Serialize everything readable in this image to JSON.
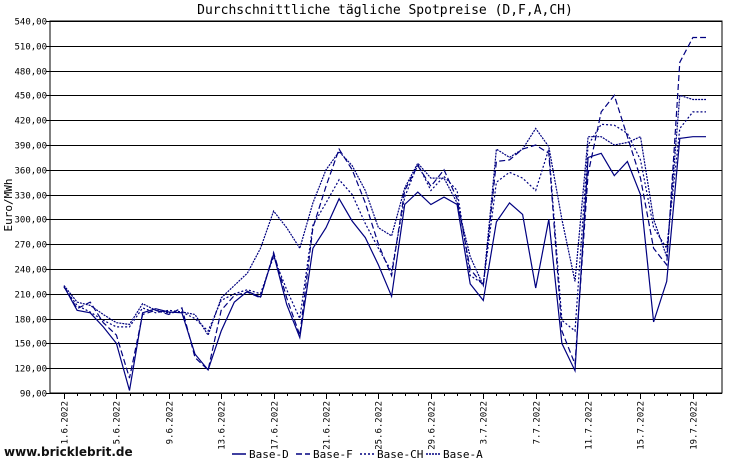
{
  "source": "www.bricklebrit.de",
  "chart_data": {
    "type": "line",
    "title": "Durchschnittliche tägliche Spotpreise (D,F,A,CH)",
    "xlabel": "",
    "ylabel": "Euro/MWh",
    "ylim": [
      90,
      540
    ],
    "yticks": [
      "90,00",
      "120,00",
      "150,00",
      "180,00",
      "210,00",
      "240,00",
      "270,00",
      "300,00",
      "330,00",
      "360,00",
      "390,00",
      "420,00",
      "450,00",
      "480,00",
      "510,00",
      "540,00"
    ],
    "x": [
      "1.6.2022",
      "2.6.2022",
      "3.6.2022",
      "4.6.2022",
      "5.6.2022",
      "6.6.2022",
      "7.6.2022",
      "8.6.2022",
      "9.6.2022",
      "10.6.2022",
      "11.6.2022",
      "12.6.2022",
      "13.6.2022",
      "14.6.2022",
      "15.6.2022",
      "16.6.2022",
      "17.6.2022",
      "18.6.2022",
      "19.6.2022",
      "20.6.2022",
      "21.6.2022",
      "22.6.2022",
      "23.6.2022",
      "24.6.2022",
      "25.6.2022",
      "26.6.2022",
      "27.6.2022",
      "28.6.2022",
      "29.6.2022",
      "30.6.2022",
      "1.7.2022",
      "2.7.2022",
      "3.7.2022",
      "4.7.2022",
      "5.7.2022",
      "6.7.2022",
      "7.7.2022",
      "8.7.2022",
      "9.7.2022",
      "10.7.2022",
      "11.7.2022",
      "12.7.2022",
      "13.7.2022",
      "14.7.2022",
      "15.7.2022",
      "16.7.2022",
      "17.7.2022",
      "18.7.2022",
      "19.7.2022",
      "20.7.2022"
    ],
    "xticks": [
      "1.6.2022",
      "5.6.2022",
      "9.6.2022",
      "13.6.2022",
      "17.6.2022",
      "21.6.2022",
      "25.6.2022",
      "29.6.2022",
      "3.7.2022",
      "7.7.2022",
      "11.7.2022",
      "15.7.2022",
      "19.7.2022"
    ],
    "grid": "horizontal",
    "legend": "bottom",
    "series": [
      {
        "name": "Base-D",
        "style": "solid",
        "color": "#000080",
        "values": [
          219,
          190,
          187,
          170,
          150,
          93,
          187,
          192,
          188,
          187,
          137,
          118,
          165,
          200,
          213,
          206,
          258,
          197,
          157,
          265,
          290,
          325,
          298,
          278,
          245,
          207,
          318,
          333,
          318,
          327,
          318,
          222,
          202,
          297,
          320,
          306,
          217,
          300,
          150,
          117,
          375,
          380,
          353,
          370,
          330,
          176,
          225,
          398,
          400,
          400
        ]
      },
      {
        "name": "Base-F",
        "style": "dashed",
        "color": "#000080",
        "values": [
          219,
          192,
          200,
          175,
          160,
          108,
          185,
          190,
          185,
          193,
          133,
          118,
          190,
          208,
          212,
          205,
          260,
          205,
          160,
          290,
          340,
          385,
          360,
          320,
          270,
          232,
          335,
          365,
          340,
          360,
          325,
          240,
          220,
          370,
          372,
          385,
          390,
          380,
          165,
          125,
          355,
          430,
          450,
          400,
          350,
          265,
          245,
          490,
          520,
          520
        ]
      },
      {
        "name": "Base-CH",
        "style": "dotted-fine",
        "color": "#000080",
        "values": [
          218,
          196,
          188,
          178,
          170,
          170,
          193,
          187,
          190,
          188,
          180,
          165,
          202,
          210,
          215,
          210,
          255,
          215,
          180,
          293,
          320,
          348,
          330,
          295,
          265,
          237,
          327,
          367,
          335,
          352,
          335,
          232,
          222,
          345,
          357,
          350,
          335,
          385,
          178,
          165,
          390,
          415,
          414,
          404,
          372,
          290,
          265,
          410,
          430,
          430
        ]
      },
      {
        "name": "Base-A",
        "style": "dotted",
        "color": "#000080",
        "values": [
          220,
          200,
          196,
          185,
          175,
          173,
          198,
          190,
          187,
          188,
          185,
          160,
          205,
          220,
          235,
          265,
          310,
          290,
          265,
          320,
          360,
          382,
          365,
          335,
          290,
          280,
          338,
          368,
          350,
          350,
          320,
          255,
          220,
          385,
          375,
          385,
          410,
          388,
          300,
          225,
          400,
          400,
          390,
          393,
          400,
          300,
          255,
          450,
          445,
          445
        ]
      }
    ]
  }
}
